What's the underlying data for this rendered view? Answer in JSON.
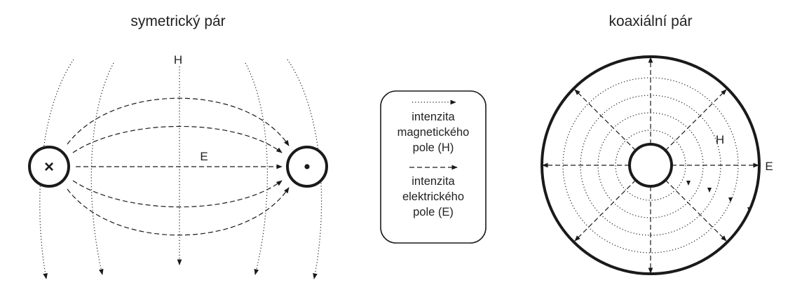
{
  "titles": {
    "left": "symetrický pár",
    "right": "koaxiální pár"
  },
  "symmetric": {
    "label_h": "H",
    "label_e": "E",
    "left_conductor_symbol": "×",
    "right_conductor_symbol": "•"
  },
  "coax": {
    "label_h": "H",
    "label_e": "E"
  },
  "legend": {
    "magnetic": [
      "intenzita",
      "magnetického",
      "pole (H)"
    ],
    "electric": [
      "intenzita",
      "elektrického",
      "pole (E)"
    ]
  },
  "colors": {
    "line": "#1a1a1a",
    "background": "#ffffff"
  }
}
